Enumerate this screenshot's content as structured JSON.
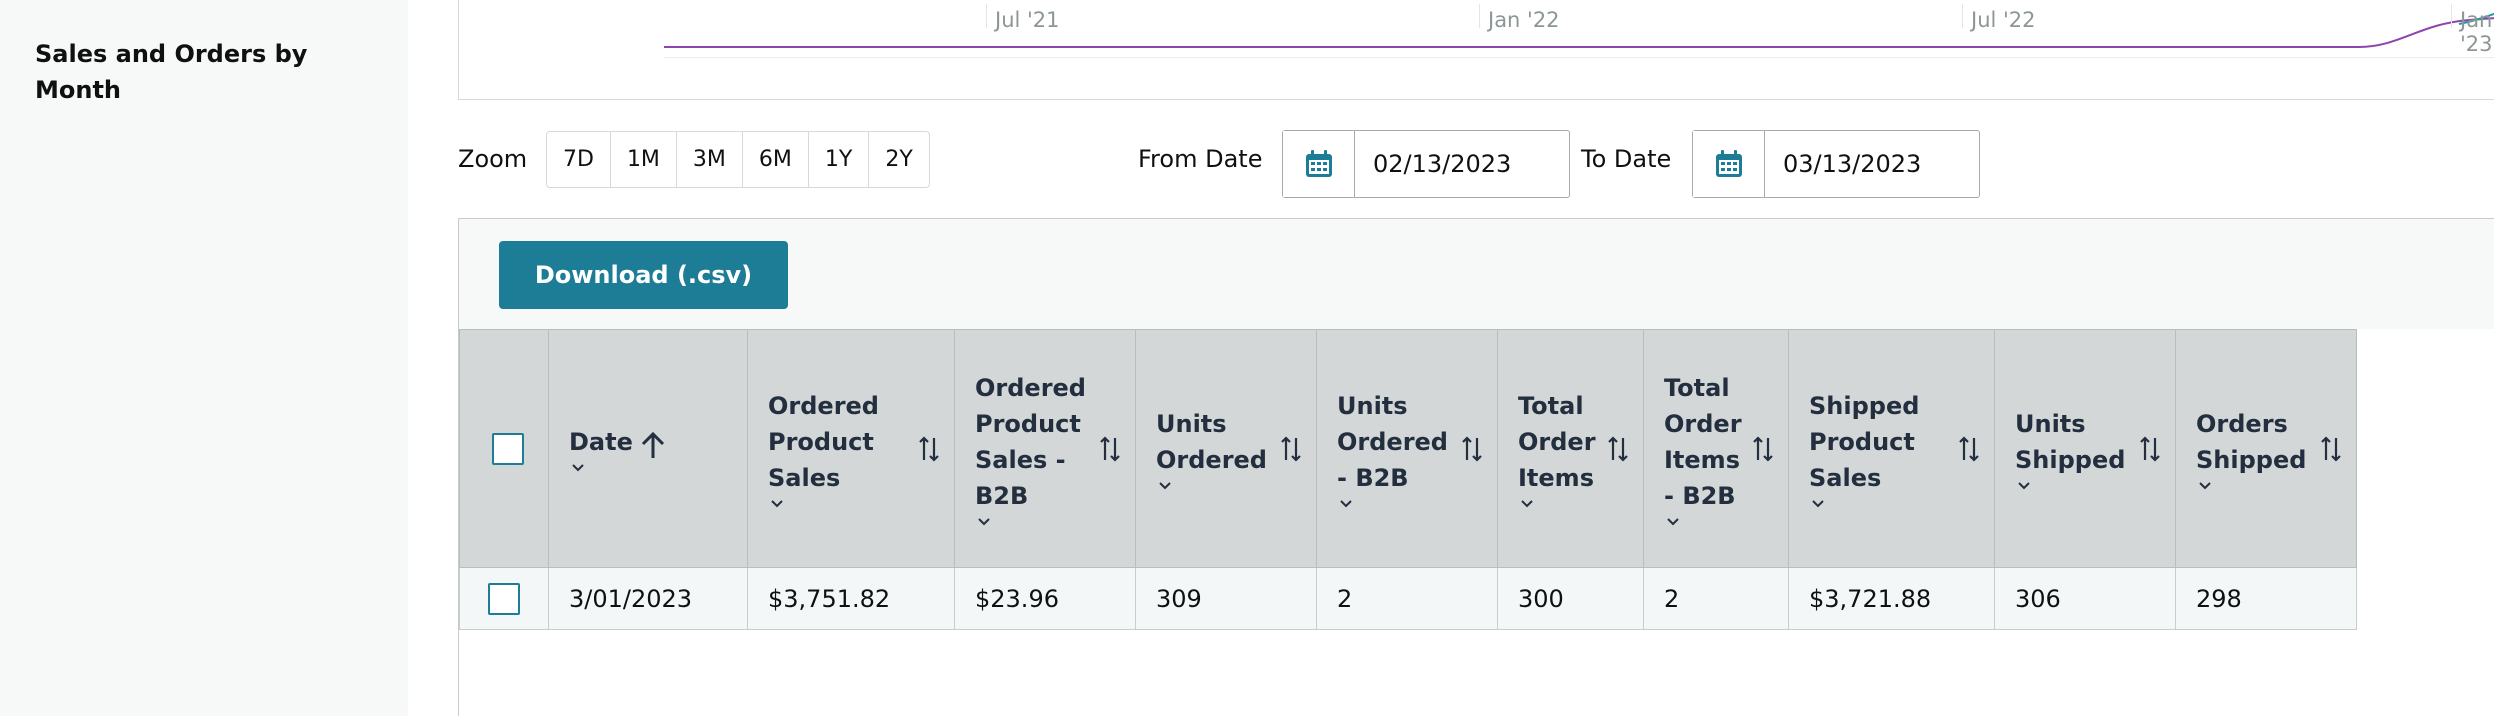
{
  "sidebar": {
    "title": "Sales and Orders by Month"
  },
  "chart": {
    "ticks": [
      "Jul '21",
      "Jan '22",
      "Jul '22",
      "Jan '23"
    ],
    "line_color": "#8e44ad",
    "line_color_secondary": "#1d9e9e"
  },
  "zoom": {
    "label": "Zoom",
    "options": [
      "7D",
      "1M",
      "3M",
      "6M",
      "1Y",
      "2Y"
    ]
  },
  "dates": {
    "from_label": "From Date",
    "from_value": "02/13/2023",
    "to_label": "To Date",
    "to_value": "03/13/2023"
  },
  "actions": {
    "download_label": "Download (.csv)"
  },
  "colors": {
    "accent": "#1d7d96",
    "header_bg": "#d3d7d7",
    "highlight_teal": "#bfe6e2",
    "highlight_pink": "#e8c3e3"
  },
  "table": {
    "columns": [
      "Date",
      "Ordered Product Sales",
      "Ordered Product Sales - B2B",
      "Units Ordered",
      "Units Ordered - B2B",
      "Total Order Items",
      "Total Order Items - B2B",
      "Shipped Product Sales",
      "Units Shipped",
      "Orders Shipped"
    ],
    "rows": [
      [
        "3/01/2023",
        "$3,751.82",
        "$23.96",
        "309",
        "2",
        "300",
        "2",
        "$3,721.88",
        "306",
        "298"
      ]
    ]
  }
}
